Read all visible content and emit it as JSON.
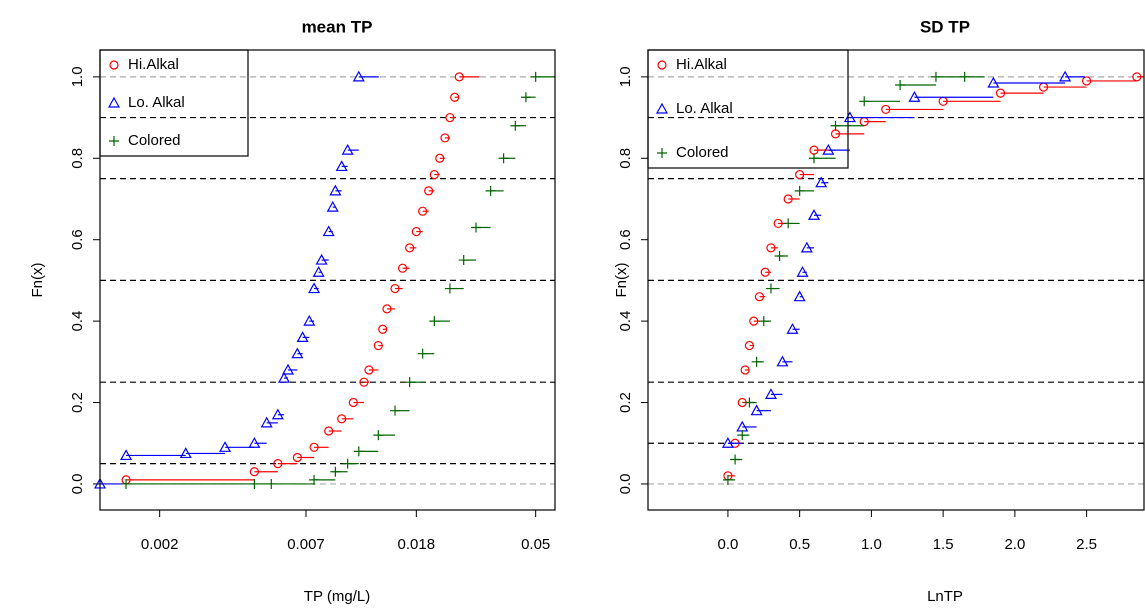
{
  "chart_data": [
    {
      "type": "ecdf",
      "title": "mean TP",
      "xlabel": "TP (mg/L)",
      "ylabel": "Fn(x)",
      "xscale": "log",
      "xlim": [
        0.0012,
        0.059
      ],
      "ylim": [
        -0.064,
        1.066
      ],
      "xticks": [
        0.002,
        0.007,
        0.018,
        0.05
      ],
      "yticks": [
        {
          "value": 0,
          "label": "0.0"
        },
        0.2,
        0.4,
        0.6,
        0.8,
        {
          "value": 1,
          "label": "1.0"
        }
      ],
      "hlines": [
        {
          "y": 0,
          "color": "#aaaaaa"
        },
        {
          "y": 0.05,
          "color": "#000000"
        },
        {
          "y": 0.25,
          "color": "#000000"
        },
        {
          "y": 0.5,
          "color": "#000000"
        },
        {
          "y": 0.75,
          "color": "#000000"
        },
        {
          "y": 0.9,
          "color": "#000000"
        },
        {
          "y": 1,
          "color": "#aaaaaa"
        }
      ],
      "legend": "top-left",
      "series": [
        {
          "name": "Hi.Alkal",
          "color": "#ff0000",
          "marker": "circle",
          "x": [
            0.0015,
            0.0045,
            0.0055,
            0.0065,
            0.0075,
            0.0085,
            0.0095,
            0.0105,
            0.0115,
            0.012,
            0.013,
            0.0135,
            0.014,
            0.015,
            0.016,
            0.017,
            0.018,
            0.019,
            0.02,
            0.021,
            0.022,
            0.023,
            0.024,
            0.025,
            0.026
          ],
          "values": [
            0.01,
            0.03,
            0.05,
            0.065,
            0.09,
            0.13,
            0.16,
            0.2,
            0.25,
            0.28,
            0.34,
            0.38,
            0.43,
            0.48,
            0.53,
            0.58,
            0.62,
            0.67,
            0.72,
            0.76,
            0.8,
            0.85,
            0.9,
            0.95,
            1.0
          ]
        },
        {
          "name": "Lo. Alkal",
          "color": "#0000ff",
          "marker": "triangle",
          "x": [
            0.0012,
            0.0015,
            0.0025,
            0.0035,
            0.0045,
            0.005,
            0.0055,
            0.0058,
            0.006,
            0.0065,
            0.0068,
            0.0072,
            0.0075,
            0.0078,
            0.008,
            0.0085,
            0.0088,
            0.009,
            0.0095,
            0.01,
            0.011
          ],
          "values": [
            0.0,
            0.07,
            0.075,
            0.09,
            0.1,
            0.15,
            0.17,
            0.26,
            0.28,
            0.32,
            0.36,
            0.4,
            0.48,
            0.52,
            0.55,
            0.62,
            0.68,
            0.72,
            0.78,
            0.82,
            1.0
          ]
        },
        {
          "name": "Colored",
          "color": "#006400",
          "marker": "plus",
          "x": [
            0.0015,
            0.0045,
            0.0052,
            0.0075,
            0.009,
            0.01,
            0.011,
            0.013,
            0.015,
            0.017,
            0.019,
            0.021,
            0.024,
            0.027,
            0.03,
            0.034,
            0.038,
            0.042,
            0.046,
            0.05
          ],
          "values": [
            0.0,
            0.0,
            0.0,
            0.01,
            0.03,
            0.05,
            0.08,
            0.12,
            0.18,
            0.25,
            0.32,
            0.4,
            0.48,
            0.55,
            0.63,
            0.72,
            0.8,
            0.88,
            0.95,
            1.0
          ]
        }
      ]
    },
    {
      "type": "ecdf",
      "title": "SD TP",
      "xlabel": "LnTP",
      "ylabel": "Fn(x)",
      "xscale": "linear",
      "xlim": [
        -0.557,
        2.9
      ],
      "ylim": [
        -0.064,
        1.066
      ],
      "xticks": [
        {
          "value": 0,
          "label": "0.0"
        },
        0.5,
        {
          "value": 1,
          "label": "1.0"
        },
        1.5,
        {
          "value": 2,
          "label": "2.0"
        },
        2.5
      ],
      "yticks": [
        {
          "value": 0,
          "label": "0.0"
        },
        0.2,
        0.4,
        0.6,
        0.8,
        {
          "value": 1,
          "label": "1.0"
        }
      ],
      "hlines": [
        {
          "y": 0,
          "color": "#aaaaaa"
        },
        {
          "y": 0.1,
          "color": "#000000"
        },
        {
          "y": 0.25,
          "color": "#000000"
        },
        {
          "y": 0.5,
          "color": "#000000"
        },
        {
          "y": 0.75,
          "color": "#000000"
        },
        {
          "y": 0.9,
          "color": "#000000"
        },
        {
          "y": 1,
          "color": "#aaaaaa"
        }
      ],
      "legend": "top-left",
      "series": [
        {
          "name": "Hi.Alkal",
          "color": "#ff0000",
          "marker": "circle",
          "x": [
            0.0,
            0.05,
            0.1,
            0.12,
            0.15,
            0.18,
            0.22,
            0.26,
            0.3,
            0.35,
            0.42,
            0.5,
            0.6,
            0.75,
            0.95,
            1.1,
            1.5,
            1.9,
            2.2,
            2.5,
            2.85
          ],
          "values": [
            0.02,
            0.1,
            0.2,
            0.28,
            0.34,
            0.4,
            0.46,
            0.52,
            0.58,
            0.64,
            0.7,
            0.76,
            0.82,
            0.86,
            0.89,
            0.92,
            0.94,
            0.96,
            0.975,
            0.99,
            1.0
          ]
        },
        {
          "name": "Lo. Alkal",
          "color": "#0000ff",
          "marker": "triangle",
          "x": [
            0.0,
            0.1,
            0.2,
            0.3,
            0.38,
            0.45,
            0.5,
            0.52,
            0.55,
            0.6,
            0.65,
            0.7,
            0.85,
            1.3,
            1.85,
            2.35
          ],
          "values": [
            0.1,
            0.14,
            0.18,
            0.22,
            0.3,
            0.38,
            0.46,
            0.52,
            0.58,
            0.66,
            0.74,
            0.82,
            0.9,
            0.95,
            0.985,
            1.0
          ]
        },
        {
          "name": "Colored",
          "color": "#006400",
          "marker": "plus",
          "x": [
            0.0,
            0.05,
            0.1,
            0.15,
            0.2,
            0.25,
            0.3,
            0.36,
            0.42,
            0.5,
            0.6,
            0.75,
            0.95,
            1.2,
            1.45,
            1.65
          ],
          "values": [
            0.01,
            0.06,
            0.12,
            0.2,
            0.3,
            0.4,
            0.48,
            0.56,
            0.64,
            0.72,
            0.8,
            0.88,
            0.94,
            0.98,
            1.0,
            1.0
          ]
        }
      ]
    }
  ]
}
